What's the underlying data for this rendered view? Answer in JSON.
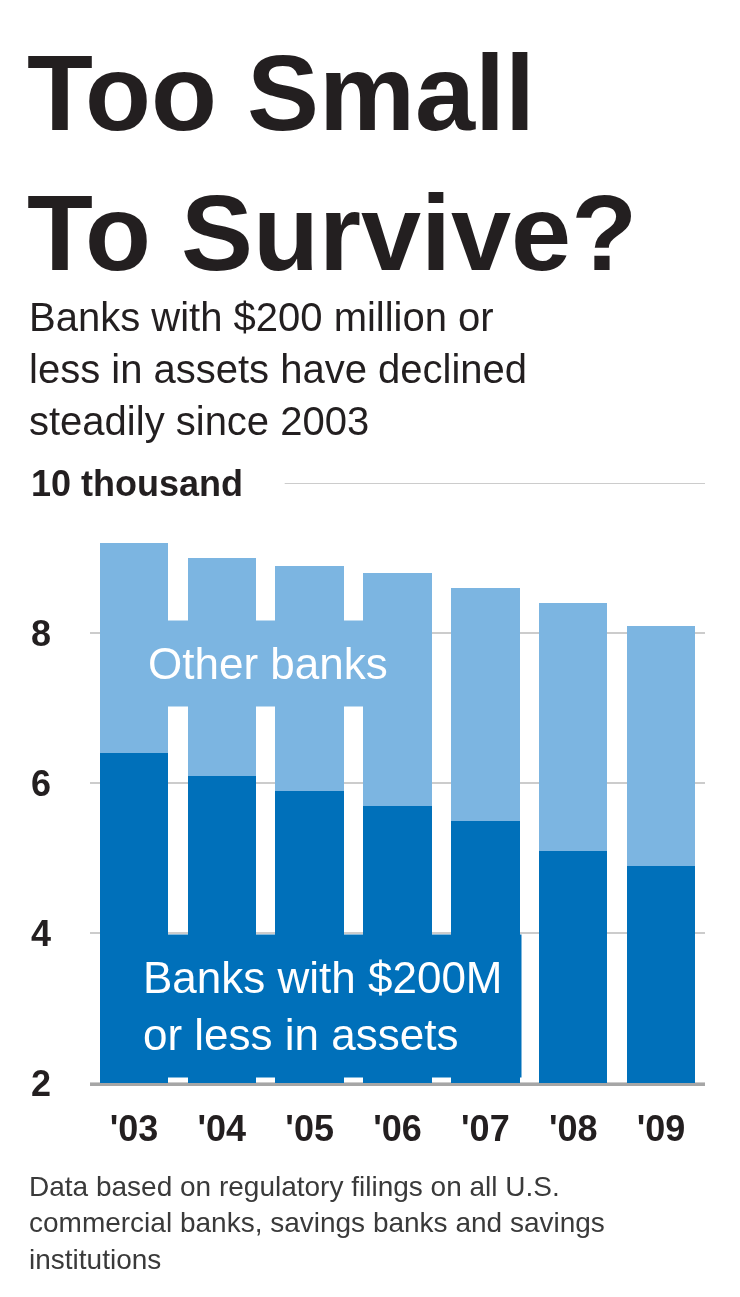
{
  "chart_data": {
    "type": "bar",
    "title": "Too Small To Survive?",
    "subtitle": "Banks with $200 million or less in assets have declined steadily since 2003",
    "categories": [
      "'03",
      "'04",
      "'05",
      "'06",
      "'07",
      "'08",
      "'09"
    ],
    "stacked": true,
    "series": [
      {
        "name": "Banks with $200M or less in assets",
        "color": "#0070ba",
        "values": [
          6.4,
          6.1,
          5.9,
          5.7,
          5.5,
          5.1,
          4.9
        ]
      },
      {
        "name": "Other banks",
        "color": "#7cb5e1",
        "values": [
          2.8,
          2.9,
          3.0,
          3.1,
          3.1,
          3.3,
          3.2
        ]
      }
    ],
    "ylim": [
      2,
      10
    ],
    "yticks": [
      2,
      4,
      6,
      8,
      {
        "value": 10,
        "label": "10 thousand"
      }
    ],
    "grid": "y",
    "legend": false,
    "annotations": [
      "Data based on regulatory filings on all U.S. commercial banks, savings banks and savings institutions"
    ]
  }
}
